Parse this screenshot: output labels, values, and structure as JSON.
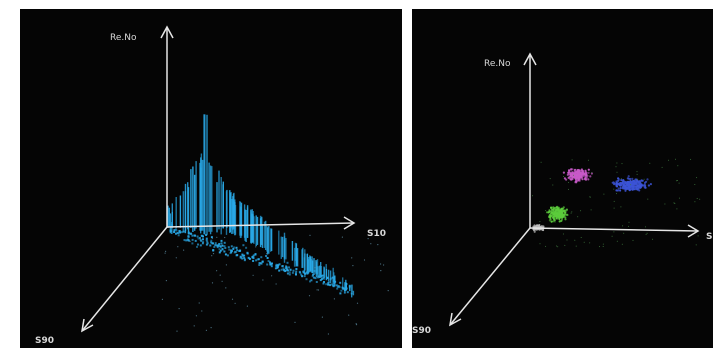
{
  "chart_data": [
    {
      "type": "scatter",
      "title": "",
      "axes": {
        "y": "Re.No",
        "x": "S10",
        "z": "S90"
      },
      "grid": false,
      "legend": "none",
      "series": [
        {
          "color": "#29a8e6",
          "description_points": [
            {
              "x": 0.0,
              "y": 0.05,
              "z": 0.0
            },
            {
              "x": 0.2,
              "y": 0.45,
              "z": 0.05
            },
            {
              "x": 0.3,
              "y": 1.0,
              "z": 0.05
            },
            {
              "x": 0.45,
              "y": 0.35,
              "z": 0.1
            },
            {
              "x": 0.7,
              "y": 0.25,
              "z": 0.25
            },
            {
              "x": 1.0,
              "y": 0.15,
              "z": 0.4
            }
          ]
        }
      ]
    },
    {
      "type": "scatter",
      "title": "",
      "axes": {
        "y": "Re.No",
        "x": "S",
        "z": "S90"
      },
      "grid": false,
      "legend": "none",
      "series": [
        {
          "color": "#c85ac8",
          "center": {
            "x": 0.28,
            "y": 0.45,
            "z": 0.0
          }
        },
        {
          "color": "#3c54d6",
          "center": {
            "x": 0.62,
            "y": 0.38,
            "z": 0.0
          }
        },
        {
          "color": "#5ccc3c",
          "center": {
            "x": 0.14,
            "y": 0.13,
            "z": 0.0
          }
        },
        {
          "color": "#bdbdbd",
          "center": {
            "x": 0.05,
            "y": 0.02,
            "z": 0.0
          }
        }
      ]
    }
  ],
  "left": {
    "y_label": "Re.No",
    "x_label": "S10",
    "z_label": "S90"
  },
  "right": {
    "y_label": "Re.No",
    "x_label": "S",
    "z_label": "S90"
  }
}
